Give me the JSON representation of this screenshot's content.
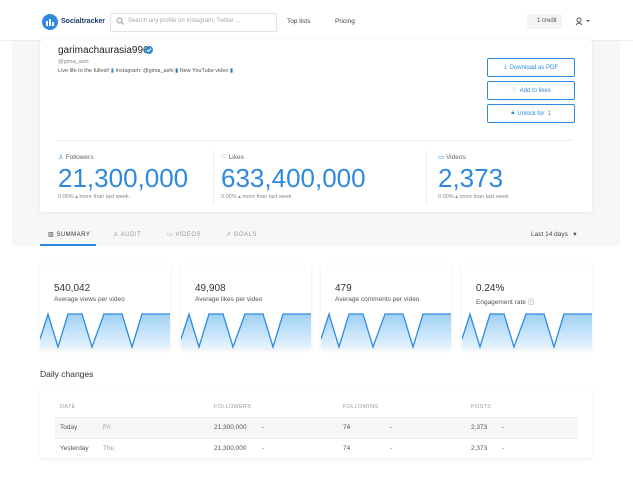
{
  "nav": {
    "logo": "Socialtracker",
    "search_placeholder": "Search any profile on Instagram, Twitter ...",
    "links": [
      "Top lists",
      "Pricing"
    ],
    "credit": "1 credit"
  },
  "profile": {
    "name": "garimachaurasia996",
    "handle": "@gima_ashi",
    "bio": [
      "Live life to the fullest!",
      "Instagram: @gima_ashi",
      "New YouTube video"
    ]
  },
  "buttons": [
    "Download as PDF",
    "Add to likes",
    "Unlock for",
    "1"
  ],
  "stats": [
    {
      "label": "Followers",
      "value": "21,300,000",
      "change": "0.00%",
      "note": "more than last week."
    },
    {
      "label": "Likes",
      "value": "633,400,000",
      "change": "0.00%",
      "note": "more than last week."
    },
    {
      "label": "Videos",
      "value": "2,373",
      "change": "0.00%",
      "note": "more than last week."
    }
  ],
  "tabs": [
    "SUMMARY",
    "AUDIT",
    "VIDEOS",
    "GOALS"
  ],
  "range": "Last 14 days",
  "cards": [
    {
      "value": "540,042",
      "label": "Average views per video"
    },
    {
      "value": "49,908",
      "label": "Average likes per video"
    },
    {
      "value": "479",
      "label": "Average comments per video"
    },
    {
      "value": "0.24%",
      "label": "Engagement rate"
    }
  ],
  "daily": {
    "title": "Daily changes",
    "table": {
      "header": [
        "DATE",
        "FOLLOWERS",
        "FOLLOWING",
        "POSTS"
      ],
      "rows": [
        [
          "Today",
          "Fri",
          "21,300,000",
          "-",
          "74",
          "-",
          "2,373",
          "-"
        ],
        [
          "Yesterday",
          "Thu",
          "21,300,000",
          "-",
          "74",
          "-",
          "2,373",
          "-"
        ]
      ]
    }
  }
}
